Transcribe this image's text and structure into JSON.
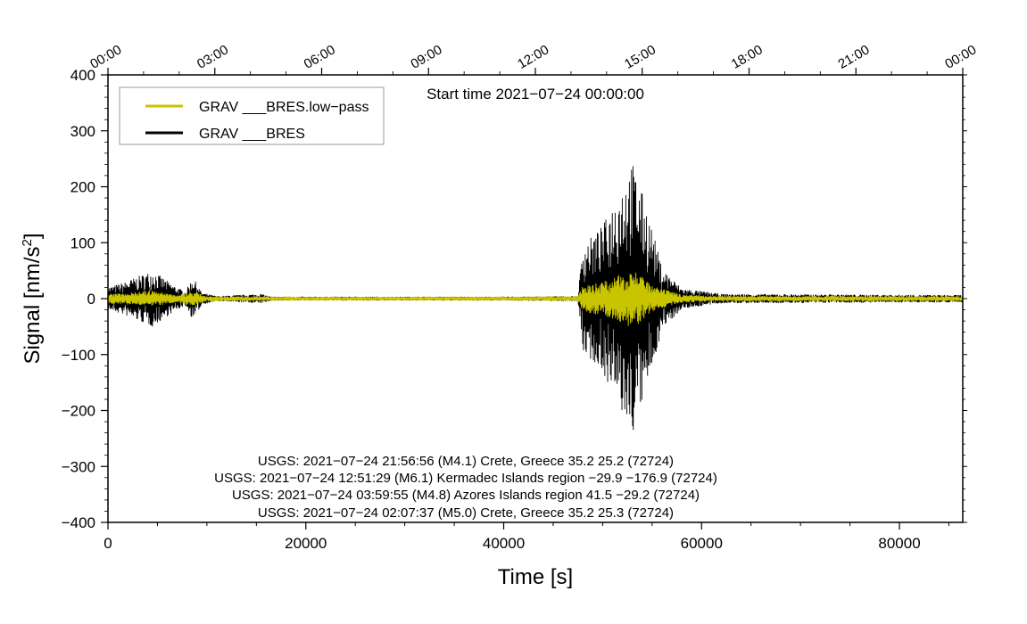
{
  "chart_data": {
    "type": "line",
    "xlabel": "Time [s]",
    "ylabel_main": "Signal [nm/s",
    "ylabel_sup": "2",
    "ylabel_end": "]",
    "xlim": [
      0,
      86400
    ],
    "ylim": [
      -400,
      400
    ],
    "x_ticks": [
      0,
      20000,
      40000,
      60000,
      80000
    ],
    "x_tick_labels": [
      "0",
      "20000",
      "40000",
      "60000",
      "80000"
    ],
    "y_ticks": [
      400,
      300,
      200,
      100,
      0,
      -100,
      -200,
      -300,
      -400
    ],
    "y_tick_labels": [
      "400",
      "300",
      "200",
      "100",
      "0",
      "−100",
      "−200",
      "−300",
      "−400"
    ],
    "top_axis_tick_labels": [
      "00:00",
      "03:00",
      "06:00",
      "09:00",
      "12:00",
      "15:00",
      "18:00",
      "21:00",
      "00:00"
    ],
    "top_axis_tick_seconds": [
      0,
      10800,
      21600,
      32400,
      43200,
      54000,
      64800,
      75600,
      86400
    ],
    "start_time_label": "Start time 2021−07−24 00:00:00",
    "legend_position": "top-left",
    "series": [
      {
        "name": "GRAV ___BRES.low−pass",
        "color": "#c8c400",
        "envelope": [
          {
            "t": 0,
            "a": 8
          },
          {
            "t": 2000,
            "a": 10
          },
          {
            "t": 4500,
            "a": 14
          },
          {
            "t": 7000,
            "a": 6
          },
          {
            "t": 8600,
            "a": 12
          },
          {
            "t": 10000,
            "a": 4
          },
          {
            "t": 20000,
            "a": 3
          },
          {
            "t": 40000,
            "a": 3
          },
          {
            "t": 47500,
            "a": 4
          },
          {
            "t": 48000,
            "a": 22
          },
          {
            "t": 51000,
            "a": 35
          },
          {
            "t": 53000,
            "a": 55
          },
          {
            "t": 55000,
            "a": 22
          },
          {
            "t": 58000,
            "a": 7
          },
          {
            "t": 62000,
            "a": 4
          },
          {
            "t": 86400,
            "a": 4
          }
        ]
      },
      {
        "name": "GRAV ___BRES",
        "color": "#000000",
        "envelope": [
          {
            "t": 0,
            "a": 20
          },
          {
            "t": 1500,
            "a": 28
          },
          {
            "t": 4500,
            "a": 50
          },
          {
            "t": 6500,
            "a": 25
          },
          {
            "t": 7800,
            "a": 12
          },
          {
            "t": 8600,
            "a": 38
          },
          {
            "t": 9500,
            "a": 10
          },
          {
            "t": 11000,
            "a": 4
          },
          {
            "t": 15500,
            "a": 8
          },
          {
            "t": 16500,
            "a": 3
          },
          {
            "t": 40000,
            "a": 3
          },
          {
            "t": 47500,
            "a": 4
          },
          {
            "t": 48000,
            "a": 95
          },
          {
            "t": 50000,
            "a": 130
          },
          {
            "t": 51500,
            "a": 190
          },
          {
            "t": 53000,
            "a": 245
          },
          {
            "t": 54500,
            "a": 160
          },
          {
            "t": 56000,
            "a": 55
          },
          {
            "t": 58000,
            "a": 18
          },
          {
            "t": 62000,
            "a": 8
          },
          {
            "t": 86400,
            "a": 6
          }
        ]
      }
    ],
    "annotations": [
      "USGS: 2021−07−24 21:56:56 (M4.1) Crete, Greece 35.2 25.2 (72724)",
      "USGS: 2021−07−24 12:51:29 (M6.1) Kermadec Islands region −29.9 −176.9 (72724)",
      "USGS: 2021−07−24 03:59:55 (M4.8) Azores Islands region 41.5 −29.2 (72724)",
      "USGS: 2021−07−24 02:07:37 (M5.0) Crete, Greece 35.2 25.3 (72724)"
    ]
  }
}
